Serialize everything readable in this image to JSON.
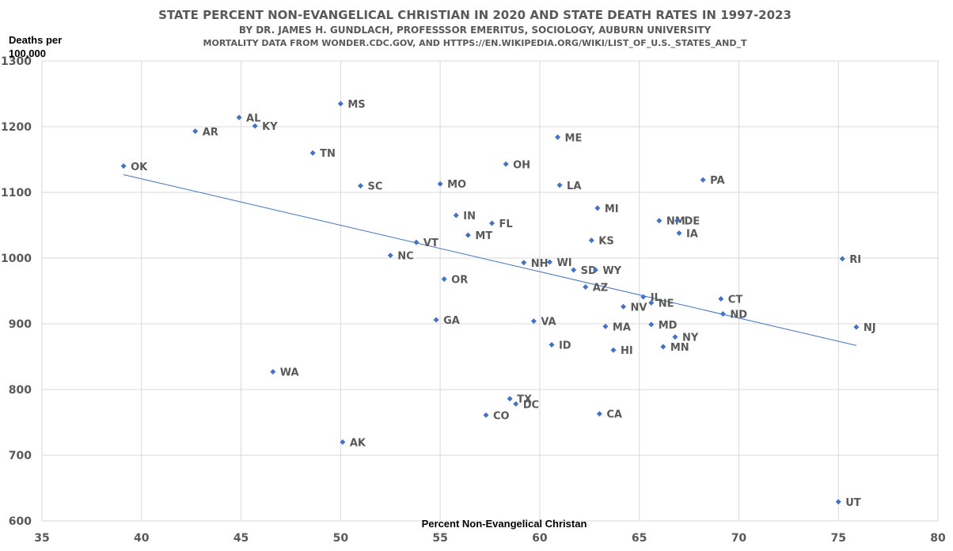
{
  "chart_data": {
    "type": "scatter",
    "title": "STATE PERCENT NON-EVANGELICAL CHRISTIAN IN 2020  AND STATE DEATH RATES IN 1997-2023",
    "subtitle": "BY DR. JAMES H. GUNDLACH,  PROFESSSOR EMERITUS, SOCIOLOGY, AUBURN UNIVERSITY",
    "source": "MORTALITY DATA FROM WONDER.CDC.GOV,  AND HTTPS://EN.WIKIPEDIA.ORG/WIKI/LIST_OF_U.S._STATES_AND_T",
    "xlabel": "Percent Non-Evangelical Christan",
    "ylabel_lines": [
      "Deaths per",
      "100,000"
    ],
    "xlim": [
      35,
      80
    ],
    "ylim": [
      600,
      1300
    ],
    "xticks": [
      "35",
      "40",
      "45",
      "50",
      "55",
      "60",
      "65",
      "70",
      "75",
      "80"
    ],
    "yticks": [
      "600",
      "700",
      "800",
      "900",
      "1000",
      "1100",
      "1200",
      "1300"
    ],
    "grid": true,
    "point_color": "#4472c4",
    "trendline": {
      "x": [
        39.1,
        75.9
      ],
      "y": [
        1127,
        867
      ]
    },
    "points": [
      {
        "label": "OK",
        "x": 39.1,
        "y": 1140
      },
      {
        "label": "AR",
        "x": 42.7,
        "y": 1193
      },
      {
        "label": "AL",
        "x": 44.9,
        "y": 1214
      },
      {
        "label": "KY",
        "x": 45.7,
        "y": 1201
      },
      {
        "label": "WA",
        "x": 46.6,
        "y": 827
      },
      {
        "label": "TN",
        "x": 48.6,
        "y": 1160
      },
      {
        "label": "MS",
        "x": 50.0,
        "y": 1235
      },
      {
        "label": "AK",
        "x": 50.1,
        "y": 720
      },
      {
        "label": "SC",
        "x": 51.0,
        "y": 1110
      },
      {
        "label": "NC",
        "x": 52.5,
        "y": 1004
      },
      {
        "label": "VT",
        "x": 53.8,
        "y": 1024
      },
      {
        "label": "GA",
        "x": 54.8,
        "y": 906
      },
      {
        "label": "MO",
        "x": 55.0,
        "y": 1113
      },
      {
        "label": "OR",
        "x": 55.2,
        "y": 968
      },
      {
        "label": "IN",
        "x": 55.8,
        "y": 1065
      },
      {
        "label": "MT",
        "x": 56.4,
        "y": 1035
      },
      {
        "label": "CO",
        "x": 57.3,
        "y": 761
      },
      {
        "label": "FL",
        "x": 57.6,
        "y": 1053
      },
      {
        "label": "OH",
        "x": 58.3,
        "y": 1143
      },
      {
        "label": "TX",
        "x": 58.5,
        "y": 786
      },
      {
        "label": "DC",
        "x": 58.8,
        "y": 778
      },
      {
        "label": "NH",
        "x": 59.2,
        "y": 993
      },
      {
        "label": "VA",
        "x": 59.7,
        "y": 904
      },
      {
        "label": "WI",
        "x": 60.5,
        "y": 994
      },
      {
        "label": "ID",
        "x": 60.6,
        "y": 868
      },
      {
        "label": "ME",
        "x": 60.9,
        "y": 1184
      },
      {
        "label": "LA",
        "x": 61.0,
        "y": 1111
      },
      {
        "label": "SD",
        "x": 61.7,
        "y": 982
      },
      {
        "label": "AZ",
        "x": 62.3,
        "y": 956
      },
      {
        "label": "KS",
        "x": 62.6,
        "y": 1027
      },
      {
        "label": "WY",
        "x": 62.8,
        "y": 982
      },
      {
        "label": "MI",
        "x": 62.9,
        "y": 1076
      },
      {
        "label": "CA",
        "x": 63.0,
        "y": 763
      },
      {
        "label": "MA",
        "x": 63.3,
        "y": 896
      },
      {
        "label": "HI",
        "x": 63.7,
        "y": 860
      },
      {
        "label": "NV",
        "x": 64.2,
        "y": 926
      },
      {
        "label": "IL",
        "x": 65.2,
        "y": 941
      },
      {
        "label": "NE",
        "x": 65.6,
        "y": 932
      },
      {
        "label": "MD",
        "x": 65.6,
        "y": 899
      },
      {
        "label": "NM",
        "x": 66.0,
        "y": 1057
      },
      {
        "label": "MN",
        "x": 66.2,
        "y": 865
      },
      {
        "label": "NY",
        "x": 66.8,
        "y": 880
      },
      {
        "label": "DE",
        "x": 66.9,
        "y": 1057
      },
      {
        "label": "IA",
        "x": 67.0,
        "y": 1038
      },
      {
        "label": "PA",
        "x": 68.2,
        "y": 1119
      },
      {
        "label": "CT",
        "x": 69.1,
        "y": 938
      },
      {
        "label": "ND",
        "x": 69.2,
        "y": 915
      },
      {
        "label": "UT",
        "x": 75.0,
        "y": 629
      },
      {
        "label": "RI",
        "x": 75.2,
        "y": 999
      },
      {
        "label": "NJ",
        "x": 75.9,
        "y": 895
      }
    ]
  }
}
